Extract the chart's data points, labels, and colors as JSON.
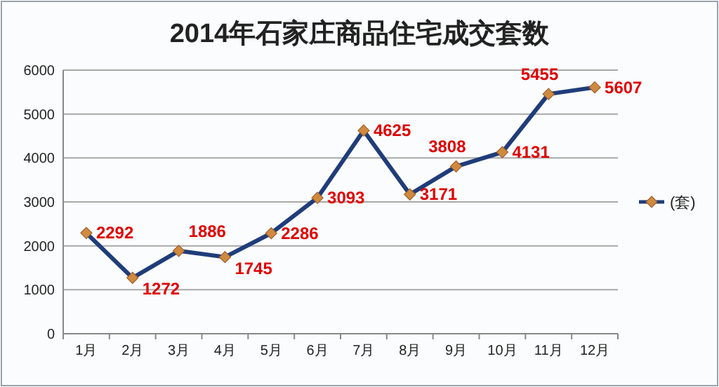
{
  "chart_data": {
    "type": "line",
    "title": "2014年石家庄商品住宅成交套数",
    "categories": [
      "1月",
      "2月",
      "3月",
      "4月",
      "5月",
      "6月",
      "7月",
      "8月",
      "9月",
      "10月",
      "11月",
      "12月"
    ],
    "series": [
      {
        "name": "(套)",
        "color": "#1f3d7a",
        "values": [
          2292,
          1272,
          1886,
          1745,
          2286,
          3093,
          4625,
          3171,
          3808,
          4131,
          5455,
          5607
        ]
      }
    ],
    "ylim": [
      0,
      6000
    ],
    "yticks": [
      0,
      1000,
      2000,
      3000,
      4000,
      5000,
      6000
    ],
    "grid": "y",
    "legend": "right",
    "marker": "diamond",
    "line_style": "solid",
    "data_labels": true
  }
}
